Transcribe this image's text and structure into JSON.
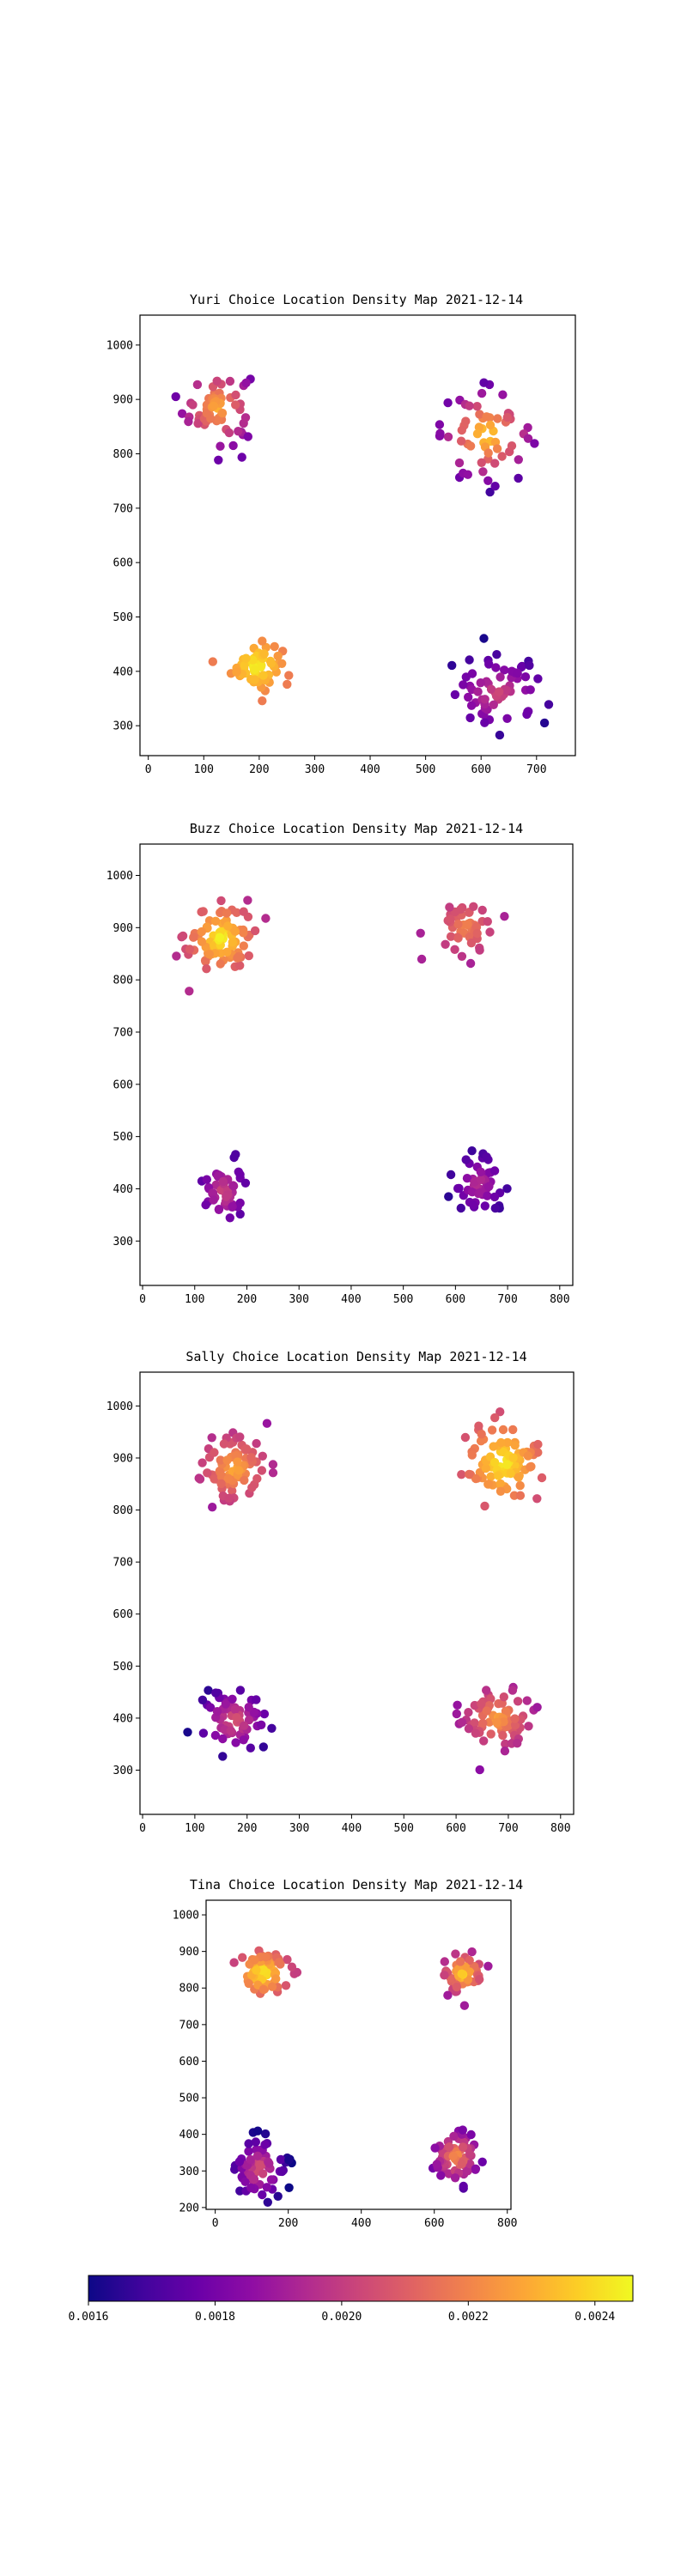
{
  "colorbar": {
    "colormap": "plasma",
    "min": 0.0016,
    "max": 0.00246,
    "ticks": [
      0.0016,
      0.0018,
      0.002,
      0.0022,
      0.0024
    ],
    "tick_labels": [
      "0.0016",
      "0.0018",
      "0.0020",
      "0.0022",
      "0.0024"
    ]
  },
  "chart_data": [
    {
      "type": "scatter",
      "title": "Yuri Choice Location Density Map 2021-12-14",
      "xlim": [
        -15,
        770
      ],
      "ylim": [
        245,
        1055
      ],
      "xticks": [
        0,
        100,
        200,
        300,
        400,
        500,
        600,
        700
      ],
      "yticks": [
        300,
        400,
        500,
        600,
        700,
        800,
        900,
        1000
      ],
      "clusters": [
        {
          "center": [
            125,
            885
          ],
          "spread": [
            40,
            45
          ],
          "count": 65,
          "density": [
            0.00178,
            0.00232
          ]
        },
        {
          "center": [
            195,
            410
          ],
          "spread": [
            30,
            28
          ],
          "count": 60,
          "density": [
            0.00218,
            0.00246
          ]
        },
        {
          "center": [
            610,
            835
          ],
          "spread": [
            55,
            55
          ],
          "count": 60,
          "density": [
            0.00168,
            0.00242
          ]
        },
        {
          "center": [
            630,
            360
          ],
          "spread": [
            60,
            45
          ],
          "count": 65,
          "density": [
            0.00162,
            0.00205
          ]
        }
      ]
    },
    {
      "type": "scatter",
      "title": "Buzz Choice Location Density Map 2021-12-14",
      "xlim": [
        -5,
        825
      ],
      "ylim": [
        215,
        1060
      ],
      "xticks": [
        0,
        100,
        200,
        300,
        400,
        500,
        600,
        700,
        800
      ],
      "yticks": [
        300,
        400,
        500,
        600,
        700,
        800,
        900,
        1000
      ],
      "clusters": [
        {
          "center": [
            150,
            880
          ],
          "spread": [
            45,
            45
          ],
          "count": 90,
          "density": [
            0.00195,
            0.00246
          ]
        },
        {
          "center": [
            620,
            900
          ],
          "spread": [
            35,
            35
          ],
          "count": 50,
          "density": [
            0.00192,
            0.00222
          ]
        },
        {
          "center": [
            155,
            395
          ],
          "spread": [
            25,
            35
          ],
          "count": 50,
          "density": [
            0.00172,
            0.00205
          ]
        },
        {
          "center": [
            645,
            410
          ],
          "spread": [
            35,
            40
          ],
          "count": 55,
          "density": [
            0.00162,
            0.00198
          ]
        }
      ]
    },
    {
      "type": "scatter",
      "title": "Sally Choice Location Density Map 2021-12-14",
      "xlim": [
        -5,
        825
      ],
      "ylim": [
        215,
        1065
      ],
      "xticks": [
        0,
        100,
        200,
        300,
        400,
        500,
        600,
        700,
        800
      ],
      "yticks": [
        300,
        400,
        500,
        600,
        700,
        800,
        900,
        1000
      ],
      "clusters": [
        {
          "center": [
            175,
            880
          ],
          "spread": [
            45,
            45
          ],
          "count": 95,
          "density": [
            0.00188,
            0.00232
          ]
        },
        {
          "center": [
            690,
            890
          ],
          "spread": [
            45,
            50
          ],
          "count": 90,
          "density": [
            0.00205,
            0.00246
          ]
        },
        {
          "center": [
            175,
            395
          ],
          "spread": [
            45,
            40
          ],
          "count": 65,
          "density": [
            0.00162,
            0.0021
          ]
        },
        {
          "center": [
            680,
            400
          ],
          "spread": [
            45,
            40
          ],
          "count": 80,
          "density": [
            0.00185,
            0.00228
          ]
        }
      ]
    },
    {
      "type": "scatter",
      "title": "Tina Choice Location Density Map 2021-12-14",
      "xlim": [
        -25,
        810
      ],
      "ylim": [
        195,
        1040
      ],
      "xticks": [
        0,
        200,
        400,
        600,
        800
      ],
      "yticks": [
        200,
        300,
        400,
        500,
        600,
        700,
        800,
        900,
        1000
      ],
      "clusters": [
        {
          "center": [
            130,
            840
          ],
          "spread": [
            45,
            40
          ],
          "count": 80,
          "density": [
            0.002,
            0.00246
          ]
        },
        {
          "center": [
            680,
            840
          ],
          "spread": [
            35,
            35
          ],
          "count": 60,
          "density": [
            0.0019,
            0.0024
          ]
        },
        {
          "center": [
            120,
            305
          ],
          "spread": [
            45,
            55
          ],
          "count": 75,
          "density": [
            0.0016,
            0.0021
          ]
        },
        {
          "center": [
            660,
            340
          ],
          "spread": [
            45,
            50
          ],
          "count": 65,
          "density": [
            0.00168,
            0.00225
          ]
        }
      ]
    }
  ]
}
